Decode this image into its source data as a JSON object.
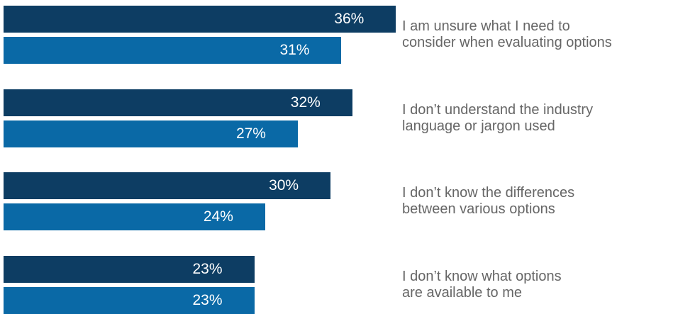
{
  "chart_data": {
    "type": "bar",
    "orientation": "horizontal",
    "categories": [
      "I am unsure what I need to\nconsider when evaluating options",
      "I don’t understand the industry\nlanguage or jargon used",
      "I don’t know the differences\nbetween various options",
      "I don’t know what options\nare available to me"
    ],
    "series": [
      {
        "color": "#0d3d63",
        "values": [
          36,
          32,
          30,
          23
        ],
        "value_labels": [
          "36%",
          "32%",
          "30%",
          "23%"
        ]
      },
      {
        "color": "#0a69a6",
        "values": [
          31,
          27,
          24,
          23
        ],
        "value_labels": [
          "31%",
          "27%",
          "24%",
          "23%"
        ]
      }
    ]
  }
}
